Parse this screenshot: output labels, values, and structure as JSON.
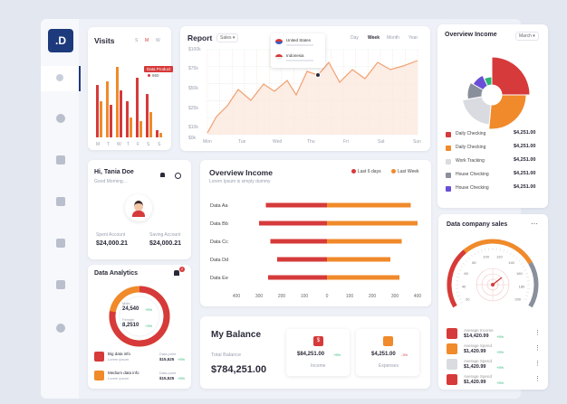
{
  "logo": ".D",
  "visits": {
    "title": "Visits",
    "days": [
      "M",
      "T",
      "W",
      "T",
      "F",
      "S",
      "S"
    ],
    "top_days": [
      "S",
      "M",
      "W"
    ],
    "tooltip": {
      "label": "Data Product",
      "value": "860"
    }
  },
  "report": {
    "title": "Report",
    "dropdown": "Sales",
    "tabs": [
      "Day",
      "Week",
      "Month",
      "Year"
    ],
    "active_tab": "Week",
    "y_ticks": [
      "$100k",
      "$75k",
      "$50k",
      "$25k",
      "$10k",
      "$0k"
    ],
    "x_ticks": [
      "Mon",
      "Tue",
      "Wed",
      "Thu",
      "Fri",
      "Sat",
      "Sun"
    ],
    "tooltip": [
      {
        "name": "United States"
      },
      {
        "name": "Indonesia"
      }
    ]
  },
  "overview_income_pie": {
    "title": "Overview Income",
    "dropdown": "March",
    "legend": [
      {
        "label": "Daily Checking",
        "value": "$4,251.00",
        "color": "#d63a3a"
      },
      {
        "label": "Daily Checking",
        "value": "$4,251.00",
        "color": "#f08a2a"
      },
      {
        "label": "Work Tracking",
        "value": "$4,251.00",
        "color": "#d9dbe0"
      },
      {
        "label": "House Checking",
        "value": "$4,251.00",
        "color": "#8a8f9c"
      },
      {
        "label": "House Checking",
        "value": "$4,251.00",
        "color": "#6a4fd6"
      }
    ]
  },
  "greeting": {
    "title": "Hi, Tania Doe",
    "subtitle": "Good Morning...",
    "spent_label": "Spent Account",
    "spent_value": "$24,000.21",
    "saving_label": "Saving Account",
    "saving_value": "$24,000.21"
  },
  "overview_income_bar": {
    "title": "Overview Income",
    "subtitle": "Lorem Ipsum is simply dummy",
    "legend": [
      {
        "label": "Last 6 days",
        "color": "#d63a3a"
      },
      {
        "label": "Last Week",
        "color": "#f08a2a"
      }
    ],
    "x_ticks": [
      "400",
      "300",
      "200",
      "100",
      "0",
      "100",
      "200",
      "300",
      "400"
    ]
  },
  "chart_data": {
    "type": "bar",
    "orientation": "horizontal",
    "categories": [
      "Data Aa",
      "Data Bb",
      "Data Cc",
      "Data Dd",
      "Data Ee"
    ],
    "series": [
      {
        "name": "Last 6 days",
        "values": [
          -270,
          -300,
          -250,
          -220,
          -260
        ]
      },
      {
        "name": "Last Week",
        "values": [
          370,
          400,
          330,
          280,
          320
        ]
      }
    ],
    "xlim": [
      -400,
      400
    ]
  },
  "analytics": {
    "title": "Data Analytics",
    "badge": "2",
    "stat1_label": "Male",
    "stat1_value": "24,540",
    "stat1_change": "+5%",
    "stat2_label": "Female",
    "stat2_value": "8,2510",
    "stat2_change": "+3%",
    "items": [
      {
        "label": "Big data info",
        "sub": "Lorem ipsum",
        "val_label": "Data point",
        "value": "$15,525",
        "change": "+5%"
      },
      {
        "label": "Medium data info",
        "sub": "Lorem ipsum",
        "val_label": "Data point",
        "value": "$15,525",
        "change": "+5%"
      }
    ]
  },
  "balance": {
    "title": "My Balance",
    "total_label": "Total Balance",
    "total_value": "$784,251.00",
    "income_value": "$84,251.00",
    "income_change": "+5%",
    "income_label": "Income",
    "expenses_value": "$4,251.00",
    "expenses_change": "-3%",
    "expenses_label": "Expenses"
  },
  "company_sales": {
    "title": "Data company sales",
    "gauge_ticks": [
      "20",
      "40",
      "60",
      "80",
      "100",
      "120",
      "140",
      "160",
      "180",
      "200"
    ],
    "items": [
      {
        "label": "Average Income",
        "value": "$14,420.99",
        "change": "+5%",
        "color": "#d63a3a"
      },
      {
        "label": "Average Spend",
        "value": "$1,420.99",
        "change": "+5%",
        "color": "#f08a2a"
      },
      {
        "label": "Average Spend",
        "value": "$1,420.99",
        "change": "+5%",
        "color": "#d9dbe0"
      },
      {
        "label": "Average Spend",
        "value": "$1,420.99",
        "change": "+5%",
        "color": "#d63a3a"
      }
    ]
  },
  "colors": {
    "navy": "#1d3a7c",
    "red": "#d63a3a",
    "orange": "#f08a2a",
    "grey": "#d9dbe0"
  }
}
